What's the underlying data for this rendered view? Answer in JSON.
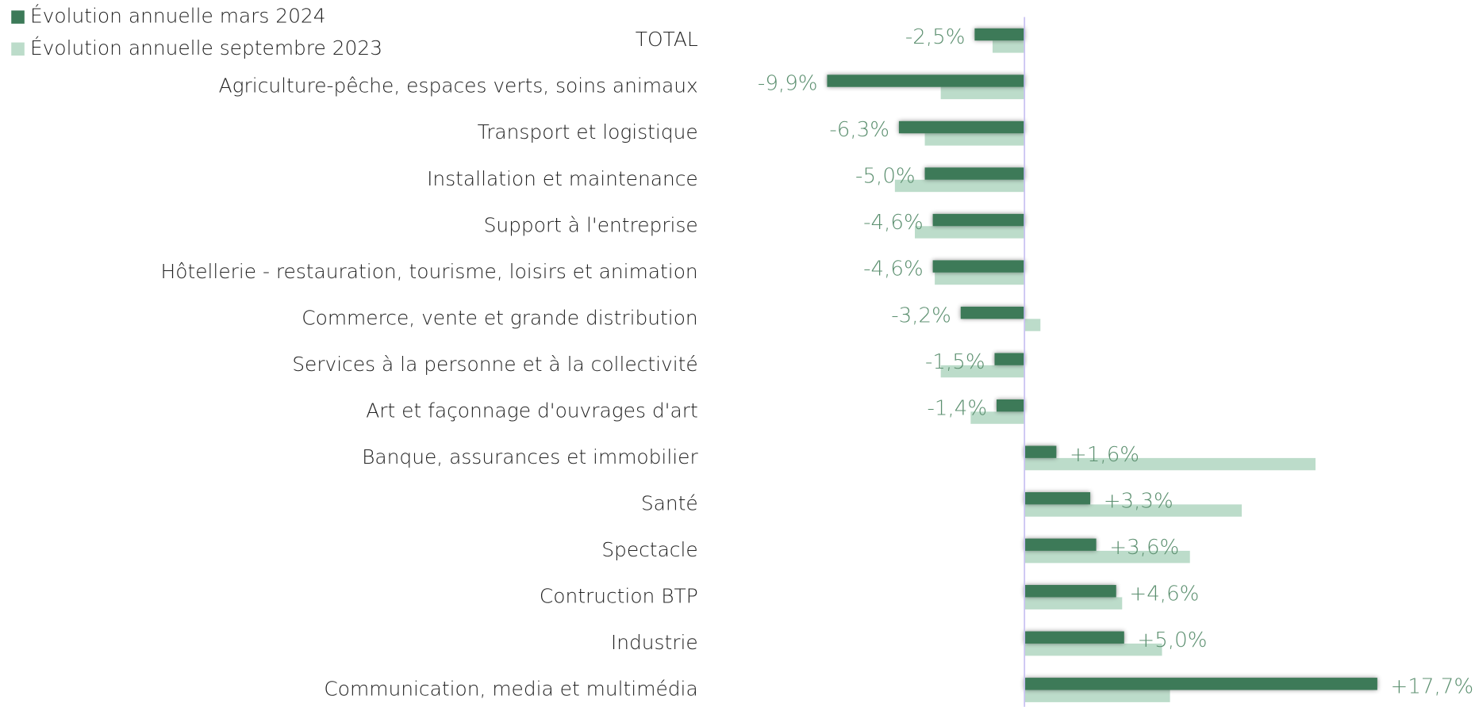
{
  "chart_data": {
    "type": "bar",
    "orientation": "horizontal",
    "categories": [
      "TOTAL",
      "Agriculture-pêche, espaces verts, soins animaux",
      "Transport et logistique",
      "Installation et maintenance",
      "Support à l'entreprise",
      "Hôtellerie - restauration, tourisme, loisirs et animation",
      "Commerce, vente et grande distribution",
      "Services à la personne et à la collectivité",
      "Art  et façonnage d'ouvrages d'art",
      "Banque, assurances et immobilier",
      "Santé",
      "Spectacle",
      "Contruction BTP",
      "Industrie",
      "Communication, media et multimédia"
    ],
    "series": [
      {
        "name": "Évolution annuelle mars 2024",
        "color": "#3c7a58",
        "values": [
          -2.5,
          -9.9,
          -6.3,
          -5.0,
          -4.6,
          -4.6,
          -3.2,
          -1.5,
          -1.4,
          1.6,
          3.3,
          3.6,
          4.6,
          5.0,
          17.7
        ],
        "value_labels": [
          "-2,5%",
          "-9,9%",
          "-6,3%",
          "-5,0%",
          "-4,6%",
          "-4,6%",
          "-3,2%",
          "-1,5%",
          "-1,4%",
          "+1,6%",
          "+3,3%",
          "+3,6%",
          "+4,6%",
          "+5,0%",
          "+17,7%"
        ]
      },
      {
        "name": "Évolution annuelle septembre 2023",
        "color": "#bcdcca",
        "values": [
          -1.6,
          -4.2,
          -5.0,
          -6.5,
          -5.5,
          -4.5,
          0.8,
          -4.2,
          -2.7,
          14.6,
          10.9,
          8.3,
          4.9,
          6.9,
          7.3
        ]
      }
    ],
    "xlim": [
      -16,
      22.6
    ],
    "legend": "top-left"
  }
}
